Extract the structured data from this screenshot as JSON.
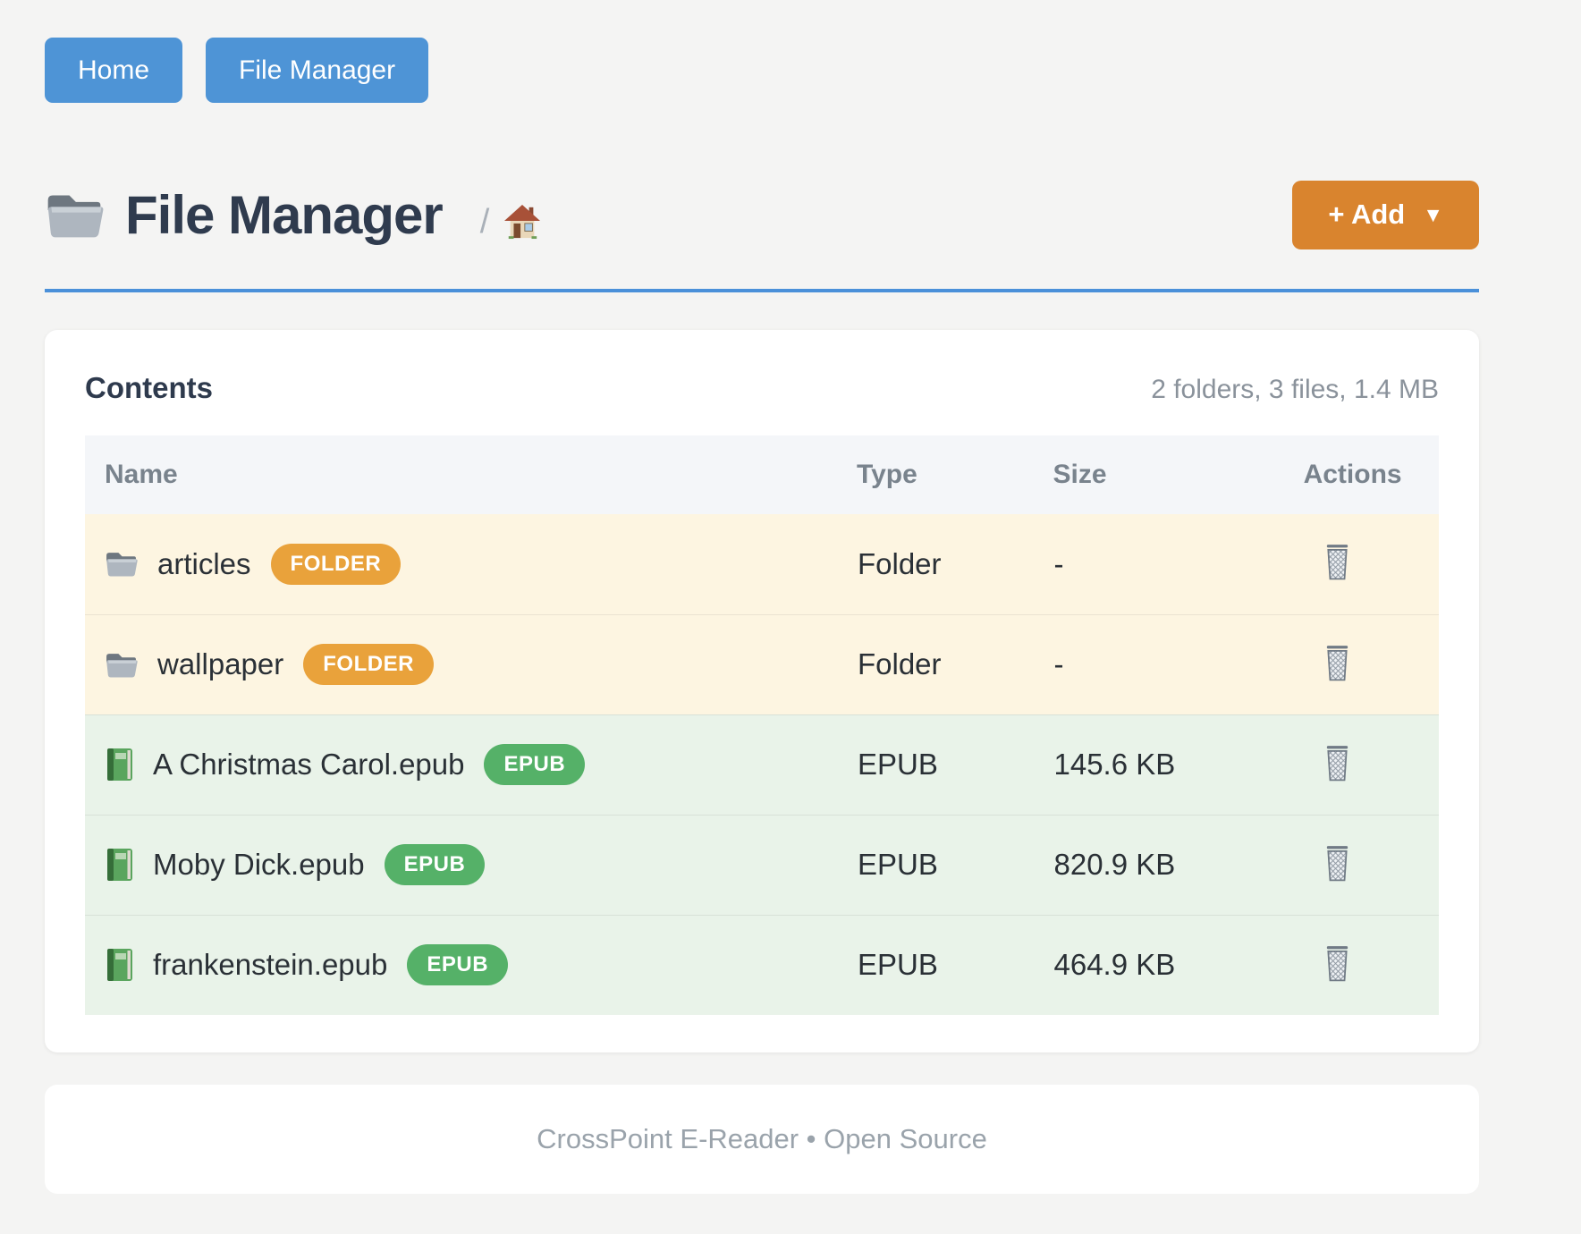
{
  "nav": {
    "items": [
      {
        "name": "home",
        "label": "Home"
      },
      {
        "name": "file-manager",
        "label": "File Manager"
      }
    ]
  },
  "header": {
    "title": "File Manager",
    "title_icon": "folder-icon",
    "breadcrumb_separator": "/",
    "breadcrumb_home_icon": "home-icon",
    "add_button": {
      "label": "+ Add",
      "caret": "▼"
    }
  },
  "contents": {
    "title": "Contents",
    "summary": "2 folders, 3 files, 1.4 MB",
    "columns": [
      "Name",
      "Type",
      "Size",
      "Actions"
    ],
    "action_icon": "trash-icon",
    "rows": [
      {
        "name": "articles",
        "kind": "folder",
        "icon": "folder-icon",
        "badge": "FOLDER",
        "type": "Folder",
        "size": "-"
      },
      {
        "name": "wallpaper",
        "kind": "folder",
        "icon": "folder-icon",
        "badge": "FOLDER",
        "type": "Folder",
        "size": "-"
      },
      {
        "name": "A Christmas Carol.epub",
        "kind": "epub",
        "icon": "book-icon",
        "badge": "EPUB",
        "type": "EPUB",
        "size": "145.6 KB"
      },
      {
        "name": "Moby Dick.epub",
        "kind": "epub",
        "icon": "book-icon",
        "badge": "EPUB",
        "type": "EPUB",
        "size": "820.9 KB"
      },
      {
        "name": "frankenstein.epub",
        "kind": "epub",
        "icon": "book-icon",
        "badge": "EPUB",
        "type": "EPUB",
        "size": "464.9 KB"
      }
    ]
  },
  "footer": {
    "text": "CrossPoint E-Reader • Open Source"
  },
  "colors": {
    "nav_button": "#4e94d6",
    "add_button": "#d9842e",
    "divider_blue": "#4a90d9",
    "folder_badge": "#e9a23b",
    "epub_badge": "#55b168",
    "folder_row_bg": "#fdf5e1",
    "epub_row_bg": "#e9f3e9"
  }
}
